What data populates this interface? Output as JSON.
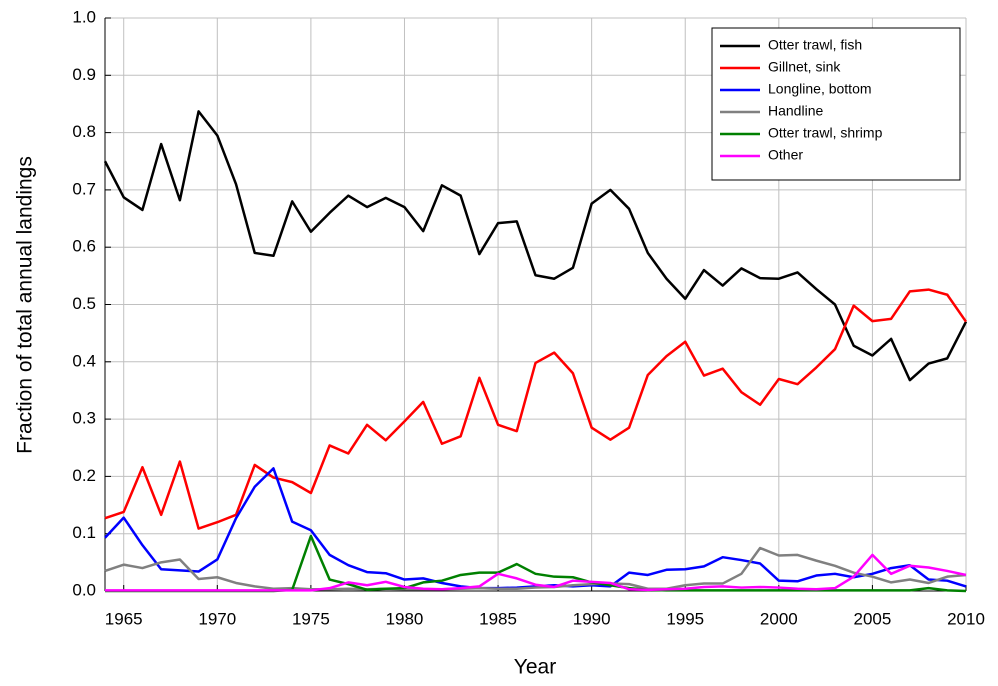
{
  "chart_data": {
    "type": "line",
    "xlabel": "Year",
    "ylabel": "Fraction of total annual landings",
    "x": [
      1964,
      1965,
      1966,
      1967,
      1968,
      1969,
      1970,
      1971,
      1972,
      1973,
      1974,
      1975,
      1976,
      1977,
      1978,
      1979,
      1980,
      1981,
      1982,
      1983,
      1984,
      1985,
      1986,
      1987,
      1988,
      1989,
      1990,
      1991,
      1992,
      1993,
      1994,
      1995,
      1996,
      1997,
      1998,
      1999,
      2000,
      2001,
      2002,
      2003,
      2004,
      2005,
      2006,
      2007,
      2008,
      2009,
      2010
    ],
    "xlim": [
      1964,
      2010
    ],
    "xticks": [
      1965,
      1970,
      1975,
      1980,
      1985,
      1990,
      1995,
      2000,
      2005,
      2010
    ],
    "ylim": [
      0,
      1
    ],
    "yticks": [
      {
        "value": 0,
        "label": "0.0"
      },
      0.1,
      0.2,
      0.3,
      0.4,
      0.5,
      0.6,
      0.7,
      0.8,
      0.9,
      {
        "value": 1,
        "label": "1.0"
      }
    ],
    "grid": true,
    "legend": "upper right",
    "series": [
      {
        "name": "Otter trawl, fish",
        "color": "#000000",
        "values": [
          0.75,
          0.687,
          0.665,
          0.78,
          0.682,
          0.837,
          0.795,
          0.71,
          0.59,
          0.585,
          0.68,
          0.627,
          0.66,
          0.69,
          0.67,
          0.686,
          0.67,
          0.628,
          0.708,
          0.69,
          0.588,
          0.642,
          0.645,
          0.551,
          0.545,
          0.564,
          0.676,
          0.7,
          0.667,
          0.59,
          0.545,
          0.51,
          0.56,
          0.533,
          0.563,
          0.546,
          0.545,
          0.556,
          0.527,
          0.5,
          0.428,
          0.411,
          0.44,
          0.368,
          0.397,
          0.406,
          0.47
        ]
      },
      {
        "name": "Gillnet, sink",
        "color": "#ff0000",
        "values": [
          0.127,
          0.138,
          0.216,
          0.133,
          0.226,
          0.109,
          0.12,
          0.133,
          0.22,
          0.198,
          0.19,
          0.171,
          0.254,
          0.24,
          0.29,
          0.263,
          0.296,
          0.33,
          0.257,
          0.27,
          0.372,
          0.29,
          0.279,
          0.398,
          0.416,
          0.38,
          0.285,
          0.264,
          0.285,
          0.377,
          0.41,
          0.435,
          0.376,
          0.388,
          0.347,
          0.325,
          0.37,
          0.361,
          0.39,
          0.422,
          0.498,
          0.471,
          0.475,
          0.523,
          0.526,
          0.517,
          0.47
        ]
      },
      {
        "name": "Longline, bottom",
        "color": "#0000ff",
        "values": [
          0.093,
          0.128,
          0.08,
          0.038,
          0.036,
          0.034,
          0.055,
          0.127,
          0.182,
          0.214,
          0.121,
          0.106,
          0.063,
          0.045,
          0.033,
          0.031,
          0.02,
          0.022,
          0.014,
          0.008,
          0.005,
          0.005,
          0.006,
          0.008,
          0.01,
          0.008,
          0.01,
          0.008,
          0.032,
          0.028,
          0.037,
          0.038,
          0.043,
          0.059,
          0.054,
          0.048,
          0.018,
          0.017,
          0.027,
          0.03,
          0.024,
          0.03,
          0.04,
          0.045,
          0.02,
          0.018,
          0.008
        ]
      },
      {
        "name": "Handline",
        "color": "#808080",
        "values": [
          0.035,
          0.046,
          0.04,
          0.05,
          0.055,
          0.021,
          0.024,
          0.014,
          0.008,
          0.004,
          0.005,
          0.003,
          0.003,
          0.004,
          0.003,
          0.004,
          0.003,
          0.003,
          0.003,
          0.004,
          0.005,
          0.004,
          0.004,
          0.006,
          0.007,
          0.01,
          0.012,
          0.013,
          0.012,
          0.004,
          0.004,
          0.01,
          0.013,
          0.013,
          0.03,
          0.075,
          0.062,
          0.063,
          0.053,
          0.044,
          0.032,
          0.025,
          0.015,
          0.02,
          0.014,
          0.025,
          0.028
        ]
      },
      {
        "name": "Otter trawl, shrimp",
        "color": "#008000",
        "values": [
          0,
          0,
          0,
          0,
          0,
          0,
          0,
          0,
          0,
          0,
          0.002,
          0.096,
          0.02,
          0.012,
          0.002,
          0.004,
          0.005,
          0.015,
          0.018,
          0.028,
          0.032,
          0.032,
          0.047,
          0.03,
          0.025,
          0.024,
          0.015,
          0.01,
          0.005,
          0.002,
          0.001,
          0.001,
          0.001,
          0.001,
          0.001,
          0.001,
          0.001,
          0.001,
          0.001,
          0.001,
          0.001,
          0.001,
          0.001,
          0.001,
          0.005,
          0.001,
          0
        ]
      },
      {
        "name": "Other",
        "color": "#ff00ff",
        "values": [
          0.001,
          0.001,
          0.001,
          0.001,
          0.001,
          0.001,
          0.001,
          0.001,
          0.001,
          0.001,
          0.001,
          0.001,
          0.005,
          0.015,
          0.01,
          0.016,
          0.007,
          0.004,
          0.003,
          0.005,
          0.008,
          0.03,
          0.022,
          0.011,
          0.007,
          0.018,
          0.016,
          0.014,
          0.003,
          0.002,
          0.003,
          0.004,
          0.007,
          0.008,
          0.006,
          0.007,
          0.006,
          0.004,
          0.003,
          0.005,
          0.025,
          0.063,
          0.03,
          0.044,
          0.041,
          0.035,
          0.028
        ]
      }
    ]
  }
}
